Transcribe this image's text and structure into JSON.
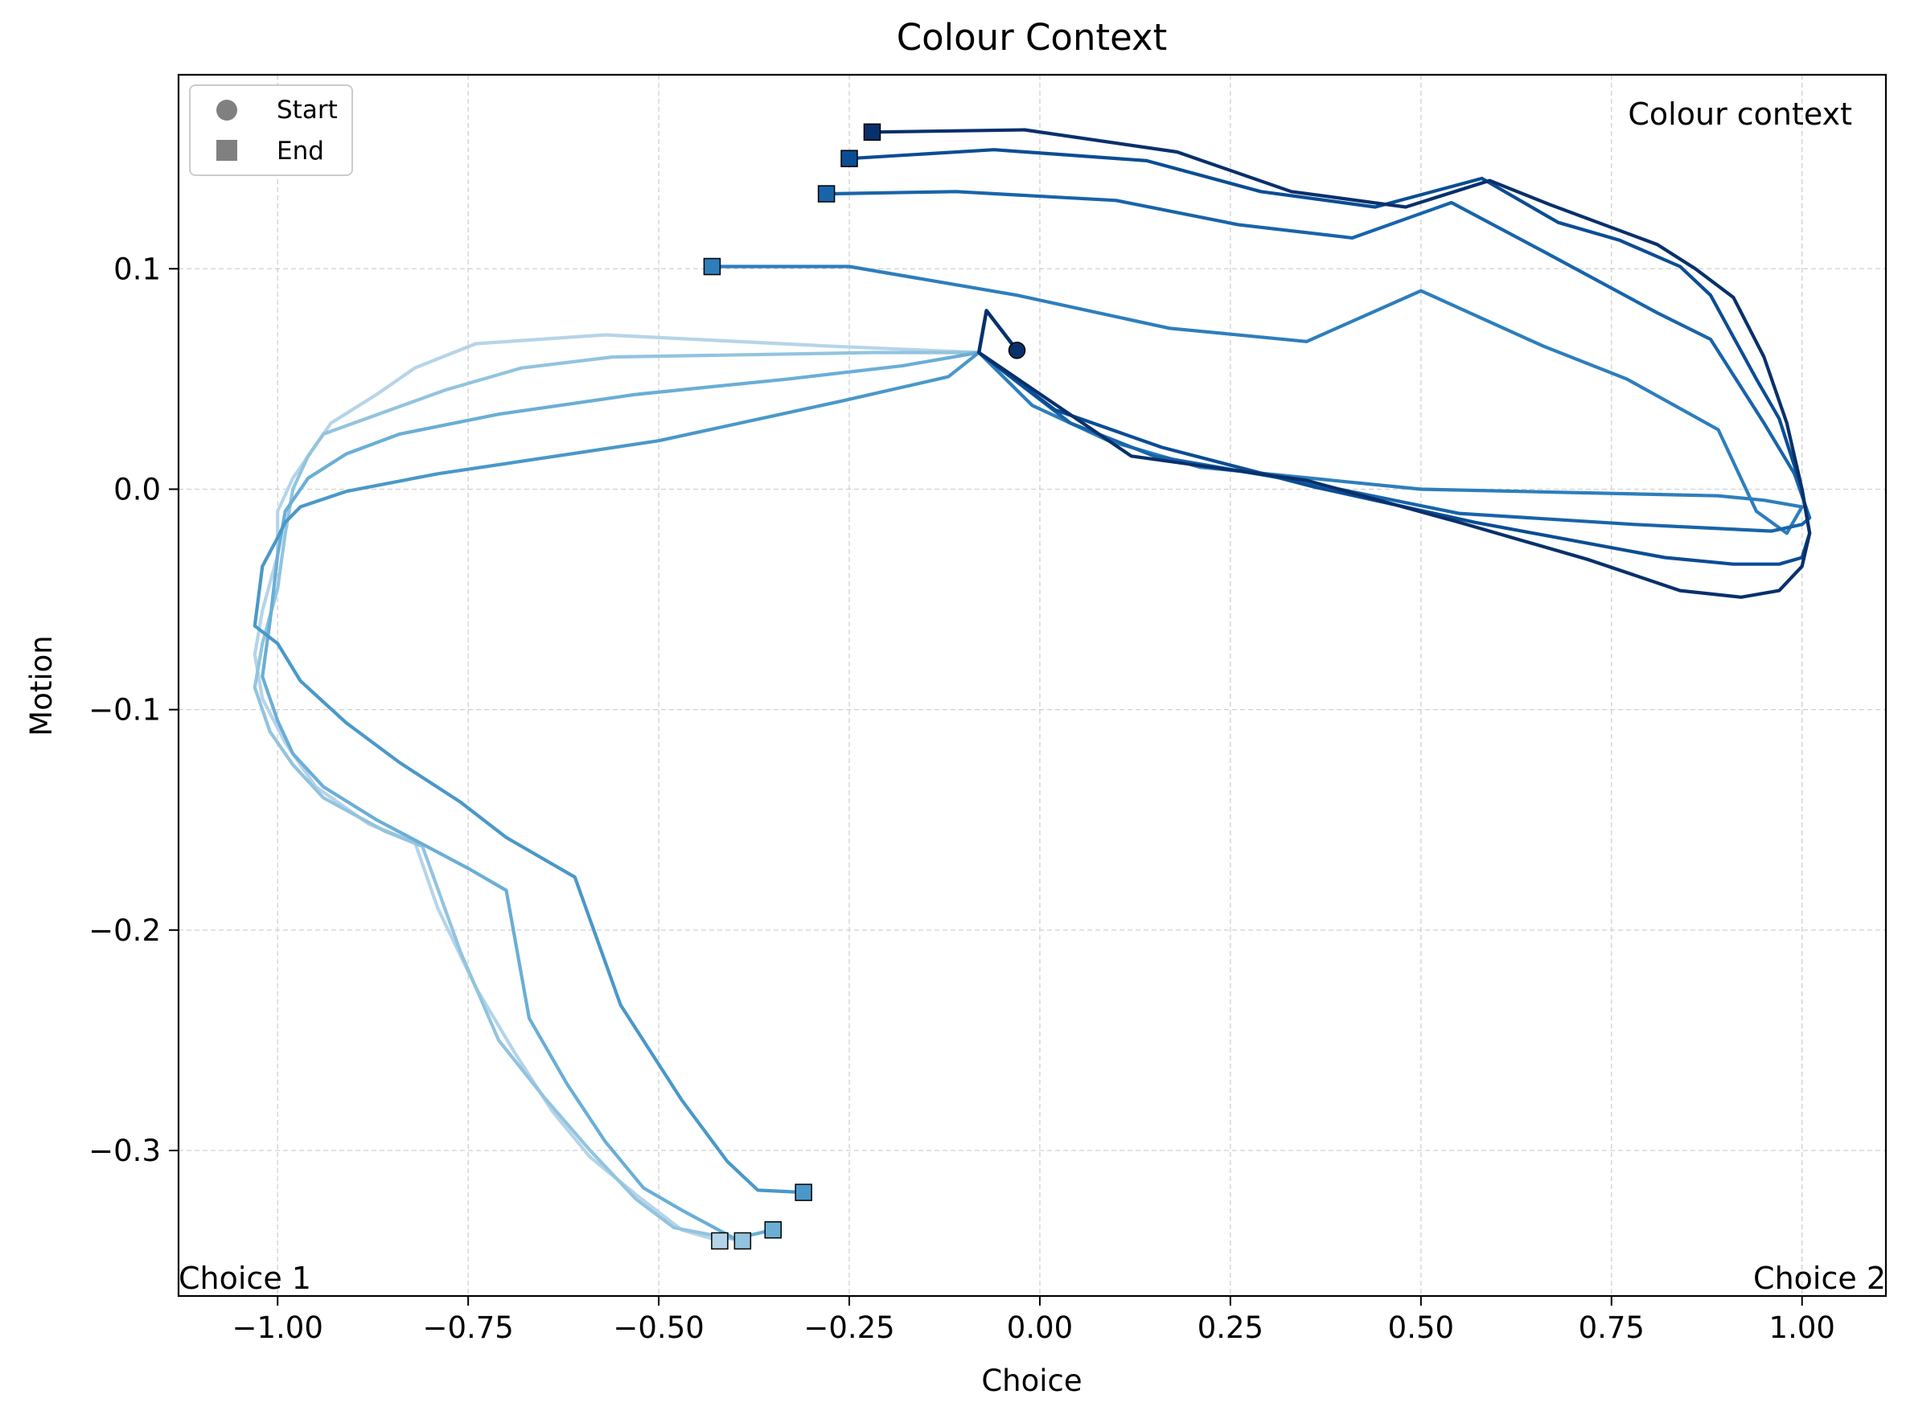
{
  "chart_data": {
    "type": "line",
    "title": "Colour Context",
    "xlabel": "Choice",
    "ylabel": "Motion",
    "xlim": [
      -1.13,
      1.11
    ],
    "ylim": [
      -0.366,
      0.188
    ],
    "xticks": [
      -1.0,
      -0.75,
      -0.5,
      -0.25,
      0.0,
      0.25,
      0.5,
      0.75,
      1.0
    ],
    "xtick_labels": [
      "−1.00",
      "−0.75",
      "−0.50",
      "−0.25",
      "0.00",
      "0.25",
      "0.50",
      "0.75",
      "1.00"
    ],
    "yticks": [
      0.1,
      0.0,
      -0.1,
      -0.2,
      -0.3
    ],
    "ytick_labels": [
      "0.1",
      "0.0",
      "−0.1",
      "−0.2",
      "−0.3"
    ],
    "grid": true,
    "legend": {
      "position": "top-left",
      "entries": [
        {
          "label": "Start",
          "marker": "circle",
          "color": "#808080"
        },
        {
          "label": "End",
          "marker": "square",
          "color": "#808080"
        }
      ]
    },
    "annotations": {
      "context": "Colour context",
      "choice1": "Choice 1",
      "choice2": "Choice 2"
    },
    "start_point": {
      "x": -0.03,
      "y": 0.063
    },
    "series": [
      {
        "color": "#b6d4e9",
        "points": [
          [
            -0.03,
            0.063
          ],
          [
            -0.07,
            0.081
          ],
          [
            -0.08,
            0.062
          ],
          [
            -0.28,
            0.065
          ],
          [
            -0.57,
            0.07
          ],
          [
            -0.74,
            0.066
          ],
          [
            -0.82,
            0.055
          ],
          [
            -0.87,
            0.043
          ],
          [
            -0.93,
            0.03
          ],
          [
            -0.95,
            0.02
          ],
          [
            -0.98,
            0.005
          ],
          [
            -1.0,
            -0.01
          ],
          [
            -1.0,
            -0.03
          ],
          [
            -1.02,
            -0.055
          ],
          [
            -1.03,
            -0.075
          ],
          [
            -1.02,
            -0.095
          ],
          [
            -0.99,
            -0.115
          ],
          [
            -0.95,
            -0.135
          ],
          [
            -0.88,
            -0.152
          ],
          [
            -0.82,
            -0.16
          ],
          [
            -0.79,
            -0.19
          ],
          [
            -0.74,
            -0.226
          ],
          [
            -0.69,
            -0.255
          ],
          [
            -0.64,
            -0.282
          ],
          [
            -0.59,
            -0.303
          ],
          [
            -0.53,
            -0.32
          ],
          [
            -0.47,
            -0.336
          ],
          [
            -0.42,
            -0.341
          ]
        ]
      },
      {
        "color": "#92c4de",
        "points": [
          [
            -0.03,
            0.063
          ],
          [
            -0.07,
            0.081
          ],
          [
            -0.08,
            0.062
          ],
          [
            -0.22,
            0.062
          ],
          [
            -0.38,
            0.061
          ],
          [
            -0.56,
            0.06
          ],
          [
            -0.68,
            0.055
          ],
          [
            -0.78,
            0.045
          ],
          [
            -0.86,
            0.035
          ],
          [
            -0.94,
            0.025
          ],
          [
            -0.96,
            0.015
          ],
          [
            -0.98,
            0.0
          ],
          [
            -0.99,
            -0.02
          ],
          [
            -1.0,
            -0.045
          ],
          [
            -1.02,
            -0.07
          ],
          [
            -1.03,
            -0.09
          ],
          [
            -1.01,
            -0.11
          ],
          [
            -0.98,
            -0.125
          ],
          [
            -0.94,
            -0.14
          ],
          [
            -0.86,
            -0.155
          ],
          [
            -0.81,
            -0.162
          ],
          [
            -0.76,
            -0.21
          ],
          [
            -0.71,
            -0.25
          ],
          [
            -0.65,
            -0.276
          ],
          [
            -0.59,
            -0.3
          ],
          [
            -0.53,
            -0.322
          ],
          [
            -0.48,
            -0.335
          ],
          [
            -0.39,
            -0.341
          ]
        ]
      },
      {
        "color": "#6aaed6",
        "points": [
          [
            -0.03,
            0.063
          ],
          [
            -0.07,
            0.081
          ],
          [
            -0.08,
            0.062
          ],
          [
            -0.18,
            0.056
          ],
          [
            -0.33,
            0.05
          ],
          [
            -0.53,
            0.043
          ],
          [
            -0.71,
            0.034
          ],
          [
            -0.84,
            0.025
          ],
          [
            -0.91,
            0.016
          ],
          [
            -0.96,
            0.005
          ],
          [
            -0.99,
            -0.01
          ],
          [
            -1.0,
            -0.03
          ],
          [
            -1.01,
            -0.06
          ],
          [
            -1.02,
            -0.085
          ],
          [
            -1.0,
            -0.105
          ],
          [
            -0.98,
            -0.12
          ],
          [
            -0.94,
            -0.135
          ],
          [
            -0.87,
            -0.15
          ],
          [
            -0.75,
            -0.172
          ],
          [
            -0.7,
            -0.182
          ],
          [
            -0.67,
            -0.24
          ],
          [
            -0.62,
            -0.27
          ],
          [
            -0.57,
            -0.296
          ],
          [
            -0.52,
            -0.317
          ],
          [
            -0.47,
            -0.327
          ],
          [
            -0.4,
            -0.34
          ],
          [
            -0.35,
            -0.336
          ]
        ]
      },
      {
        "color": "#4a98c9",
        "points": [
          [
            -0.03,
            0.063
          ],
          [
            -0.07,
            0.081
          ],
          [
            -0.08,
            0.062
          ],
          [
            -0.12,
            0.051
          ],
          [
            -0.26,
            0.04
          ],
          [
            -0.5,
            0.022
          ],
          [
            -0.79,
            0.007
          ],
          [
            -0.91,
            -0.001
          ],
          [
            -0.97,
            -0.008
          ],
          [
            -0.99,
            -0.015
          ],
          [
            -1.0,
            -0.022
          ],
          [
            -1.02,
            -0.035
          ],
          [
            -1.03,
            -0.062
          ],
          [
            -1.0,
            -0.07
          ],
          [
            -0.97,
            -0.087
          ],
          [
            -0.91,
            -0.106
          ],
          [
            -0.84,
            -0.124
          ],
          [
            -0.76,
            -0.142
          ],
          [
            -0.7,
            -0.158
          ],
          [
            -0.61,
            -0.176
          ],
          [
            -0.55,
            -0.234
          ],
          [
            -0.47,
            -0.277
          ],
          [
            -0.41,
            -0.305
          ],
          [
            -0.37,
            -0.318
          ],
          [
            -0.31,
            -0.319
          ]
        ]
      },
      {
        "color": "#2e7ebc",
        "points": [
          [
            -0.03,
            0.063
          ],
          [
            -0.07,
            0.081
          ],
          [
            -0.08,
            0.062
          ],
          [
            -0.01,
            0.038
          ],
          [
            0.09,
            0.022
          ],
          [
            0.21,
            0.01
          ],
          [
            0.5,
            0.0
          ],
          [
            0.89,
            -0.003
          ],
          [
            0.95,
            -0.005
          ],
          [
            1.0,
            -0.008
          ],
          [
            0.98,
            -0.02
          ],
          [
            0.94,
            -0.01
          ],
          [
            0.89,
            0.027
          ],
          [
            0.77,
            0.05
          ],
          [
            0.66,
            0.065
          ],
          [
            0.5,
            0.09
          ],
          [
            0.35,
            0.067
          ],
          [
            0.17,
            0.073
          ],
          [
            -0.03,
            0.088
          ],
          [
            -0.25,
            0.101
          ],
          [
            -0.43,
            0.101
          ]
        ]
      },
      {
        "color": "#1864aa",
        "points": [
          [
            -0.03,
            0.063
          ],
          [
            -0.07,
            0.081
          ],
          [
            -0.08,
            0.062
          ],
          [
            0.04,
            0.03
          ],
          [
            0.15,
            0.015
          ],
          [
            0.35,
            0.003
          ],
          [
            0.55,
            -0.011
          ],
          [
            0.78,
            -0.016
          ],
          [
            0.96,
            -0.019
          ],
          [
            1.0,
            -0.016
          ],
          [
            1.01,
            -0.013
          ],
          [
            0.99,
            0.007
          ],
          [
            0.95,
            0.03
          ],
          [
            0.88,
            0.068
          ],
          [
            0.81,
            0.08
          ],
          [
            0.66,
            0.108
          ],
          [
            0.54,
            0.13
          ],
          [
            0.41,
            0.114
          ],
          [
            0.26,
            0.12
          ],
          [
            0.1,
            0.131
          ],
          [
            -0.11,
            0.135
          ],
          [
            -0.28,
            0.134
          ]
        ]
      },
      {
        "color": "#0b4d94",
        "points": [
          [
            -0.03,
            0.063
          ],
          [
            -0.07,
            0.081
          ],
          [
            -0.08,
            0.062
          ],
          [
            0.02,
            0.036
          ],
          [
            0.16,
            0.019
          ],
          [
            0.36,
            0.001
          ],
          [
            0.57,
            -0.015
          ],
          [
            0.82,
            -0.031
          ],
          [
            0.91,
            -0.034
          ],
          [
            0.97,
            -0.034
          ],
          [
            1.0,
            -0.031
          ],
          [
            1.01,
            -0.02
          ],
          [
            1.0,
            0.0
          ],
          [
            0.97,
            0.032
          ],
          [
            0.94,
            0.05
          ],
          [
            0.88,
            0.088
          ],
          [
            0.84,
            0.101
          ],
          [
            0.76,
            0.113
          ],
          [
            0.68,
            0.121
          ],
          [
            0.58,
            0.141
          ],
          [
            0.44,
            0.128
          ],
          [
            0.29,
            0.135
          ],
          [
            0.14,
            0.149
          ],
          [
            -0.06,
            0.154
          ],
          [
            -0.25,
            0.15
          ]
        ]
      },
      {
        "color": "#08306b",
        "points": [
          [
            -0.03,
            0.063
          ],
          [
            -0.07,
            0.081
          ],
          [
            -0.08,
            0.062
          ],
          [
            0.12,
            0.015
          ],
          [
            0.35,
            0.004
          ],
          [
            0.55,
            -0.015
          ],
          [
            0.72,
            -0.032
          ],
          [
            0.84,
            -0.046
          ],
          [
            0.92,
            -0.049
          ],
          [
            0.97,
            -0.046
          ],
          [
            1.0,
            -0.035
          ],
          [
            1.01,
            -0.02
          ],
          [
            1.0,
            0.0
          ],
          [
            0.98,
            0.03
          ],
          [
            0.95,
            0.06
          ],
          [
            0.91,
            0.087
          ],
          [
            0.86,
            0.1
          ],
          [
            0.81,
            0.111
          ],
          [
            0.67,
            0.129
          ],
          [
            0.59,
            0.14
          ],
          [
            0.48,
            0.128
          ],
          [
            0.33,
            0.135
          ],
          [
            0.18,
            0.153
          ],
          [
            -0.02,
            0.163
          ],
          [
            -0.22,
            0.162
          ]
        ]
      }
    ]
  }
}
